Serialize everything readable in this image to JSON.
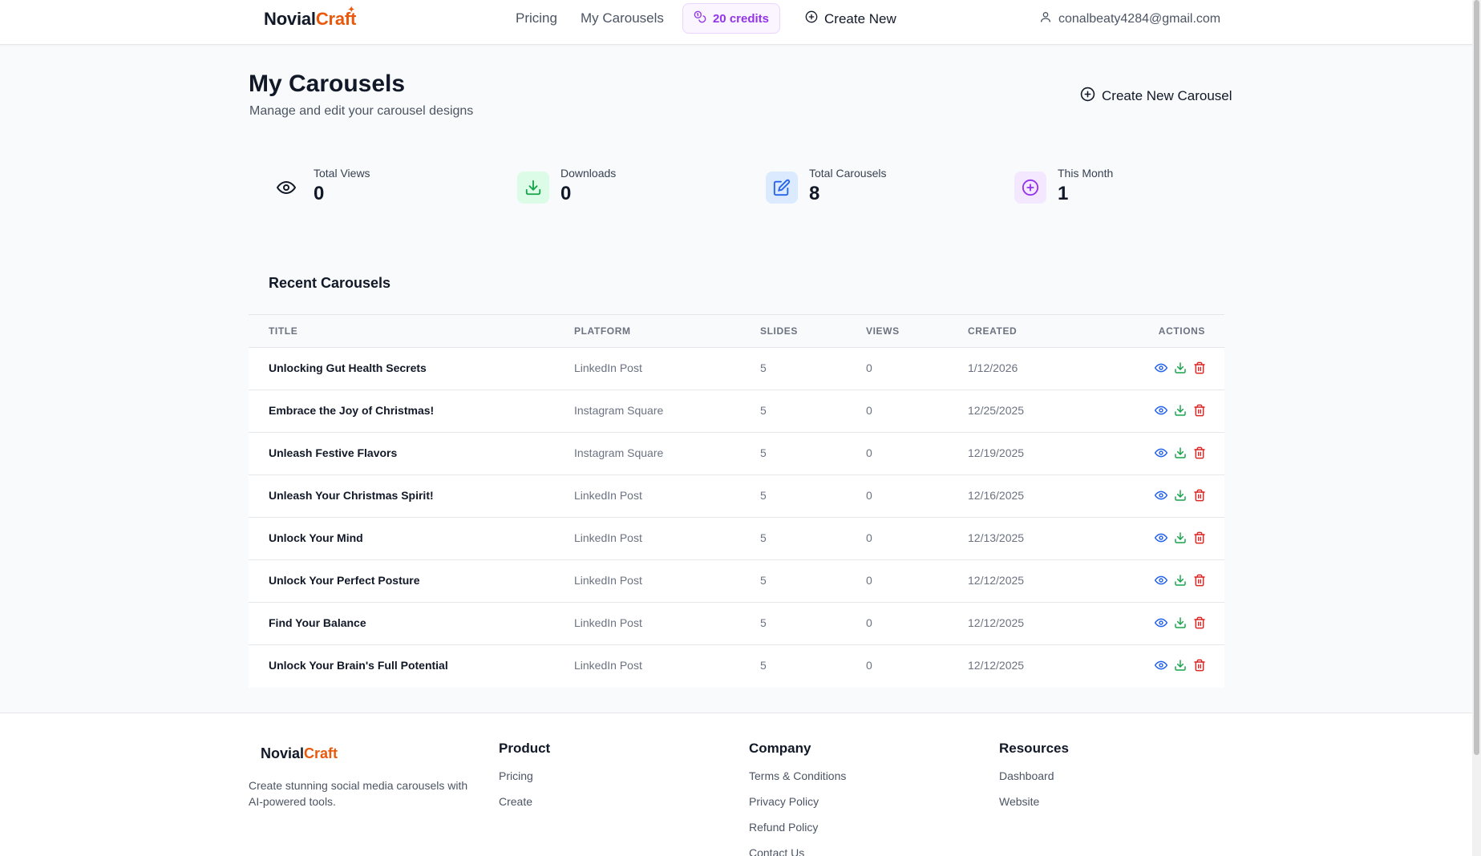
{
  "header": {
    "logo_main": "Novial",
    "logo_accent": "Craft",
    "nav": [
      {
        "label": "Pricing"
      },
      {
        "label": "My Carousels"
      }
    ],
    "credits_label": "20 credits",
    "create_new_label": "Create New",
    "user_email": "conalbeaty4284@gmail.com"
  },
  "page": {
    "title": "My Carousels",
    "subtitle": "Manage and edit your carousel designs",
    "create_button_label": "Create New Carousel"
  },
  "stats": [
    {
      "label": "Total Views",
      "value": "0",
      "icon": "eye-icon"
    },
    {
      "label": "Downloads",
      "value": "0",
      "icon": "download-icon",
      "color": "#16a34a",
      "bg": "#dcfce7"
    },
    {
      "label": "Total Carousels",
      "value": "8",
      "icon": "edit-icon",
      "color": "#2563eb",
      "bg": "#dbeafe"
    },
    {
      "label": "This Month",
      "value": "1",
      "icon": "plus-circle-icon",
      "color": "#9333ea",
      "bg": "#f3e8ff"
    }
  ],
  "recent": {
    "title": "Recent Carousels",
    "columns": [
      "TITLE",
      "PLATFORM",
      "SLIDES",
      "VIEWS",
      "CREATED",
      "ACTIONS"
    ],
    "rows": [
      {
        "title": "Unlocking Gut Health Secrets",
        "platform": "LinkedIn Post",
        "slides": "5",
        "views": "0",
        "created": "1/12/2026"
      },
      {
        "title": "Embrace the Joy of Christmas!",
        "platform": "Instagram Square",
        "slides": "5",
        "views": "0",
        "created": "12/25/2025"
      },
      {
        "title": "Unleash Festive Flavors",
        "platform": "Instagram Square",
        "slides": "5",
        "views": "0",
        "created": "12/19/2025"
      },
      {
        "title": "Unleash Your Christmas Spirit!",
        "platform": "LinkedIn Post",
        "slides": "5",
        "views": "0",
        "created": "12/16/2025"
      },
      {
        "title": "Unlock Your Mind",
        "platform": "LinkedIn Post",
        "slides": "5",
        "views": "0",
        "created": "12/13/2025"
      },
      {
        "title": "Unlock Your Perfect Posture",
        "platform": "LinkedIn Post",
        "slides": "5",
        "views": "0",
        "created": "12/12/2025"
      },
      {
        "title": "Find Your Balance",
        "platform": "LinkedIn Post",
        "slides": "5",
        "views": "0",
        "created": "12/12/2025"
      },
      {
        "title": "Unlock Your Brain's Full Potential",
        "platform": "LinkedIn Post",
        "slides": "5",
        "views": "0",
        "created": "12/12/2025"
      }
    ],
    "action_icons": [
      "eye-icon",
      "download-icon",
      "trash-icon"
    ],
    "action_colors": {
      "view": "#2563eb",
      "download": "#16a34a",
      "delete": "#dc2626"
    }
  },
  "footer": {
    "logo_main": "Novial",
    "logo_accent": "Craft",
    "description": "Create stunning social media carousels with AI-powered tools.",
    "columns": [
      {
        "heading": "Product",
        "links": [
          "Pricing",
          "Create"
        ]
      },
      {
        "heading": "Company",
        "links": [
          "Terms & Conditions",
          "Privacy Policy",
          "Refund Policy",
          "Contact Us"
        ]
      },
      {
        "heading": "Resources",
        "links": [
          "Dashboard",
          "Website"
        ]
      }
    ]
  },
  "colors": {
    "brand_accent": "#ea580c",
    "credits_purple": "#9333ea"
  }
}
